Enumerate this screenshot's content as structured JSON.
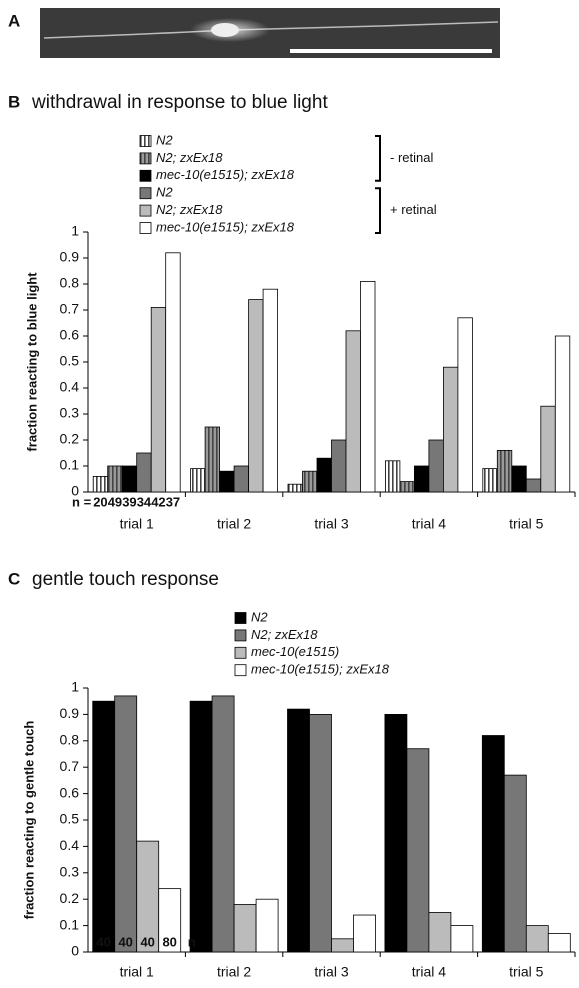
{
  "panel_a": {
    "label": "A"
  },
  "chart_data": [
    {
      "type": "bar",
      "panel": "B",
      "title": "withdrawal in response to blue light",
      "ylabel": "fraction reacting to blue light",
      "categories": [
        "trial 1",
        "trial 2",
        "trial 3",
        "trial 4",
        "trial 5"
      ],
      "series": [
        {
          "name": "N2",
          "color": "#ffffff",
          "hatch": true,
          "values": [
            0.06,
            0.09,
            0.03,
            0.12,
            0.09
          ]
        },
        {
          "name": "N2; zxEx18",
          "color": "#9a9a9a",
          "hatch": true,
          "values": [
            0.1,
            0.25,
            0.08,
            0.04,
            0.16
          ]
        },
        {
          "name": "mec-10(e1515); zxEx18",
          "color": "#000000",
          "hatch": false,
          "values": [
            0.1,
            0.08,
            0.13,
            0.1,
            0.1
          ]
        },
        {
          "name": "N2",
          "color": "#777777",
          "hatch": false,
          "values": [
            0.15,
            0.1,
            0.2,
            0.2,
            0.05
          ]
        },
        {
          "name": "N2; zxEx18",
          "color": "#bbbbbb",
          "hatch": false,
          "values": [
            0.71,
            0.74,
            0.62,
            0.48,
            0.33
          ]
        },
        {
          "name": "mec-10(e1515); zxEx18",
          "color": "#ffffff",
          "hatch": false,
          "values": [
            0.92,
            0.78,
            0.81,
            0.67,
            0.6
          ]
        }
      ],
      "legend_groups": [
        "- retinal",
        "+ retinal"
      ],
      "n_label": "n =",
      "n_counts": [
        20,
        49,
        39,
        34,
        42,
        37
      ],
      "ylim": [
        0,
        1
      ],
      "yticks": [
        0,
        0.1,
        0.2,
        0.3,
        0.4,
        0.5,
        0.6,
        0.7,
        0.8,
        0.9,
        1
      ]
    },
    {
      "type": "bar",
      "panel": "C",
      "title": "gentle touch response",
      "ylabel": "fraction reacting to gentle touch",
      "categories": [
        "trial 1",
        "trial 2",
        "trial 3",
        "trial 4",
        "trial 5"
      ],
      "series": [
        {
          "name": "N2",
          "color": "#000000",
          "hatch": false,
          "values": [
            0.95,
            0.95,
            0.92,
            0.9,
            0.82
          ]
        },
        {
          "name": "N2; zxEx18",
          "color": "#777777",
          "hatch": false,
          "values": [
            0.97,
            0.97,
            0.9,
            0.77,
            0.67
          ]
        },
        {
          "name": "mec-10(e1515)",
          "color": "#bbbbbb",
          "hatch": false,
          "values": [
            0.42,
            0.18,
            0.05,
            0.15,
            0.1
          ]
        },
        {
          "name": "mec-10(e1515); zxEx18",
          "color": "#ffffff",
          "hatch": false,
          "values": [
            0.24,
            0.2,
            0.14,
            0.1,
            0.07
          ]
        }
      ],
      "n_label": "n",
      "n_counts": [
        40,
        40,
        40,
        80
      ],
      "ylim": [
        0,
        1
      ],
      "yticks": [
        0,
        0.1,
        0.2,
        0.3,
        0.4,
        0.5,
        0.6,
        0.7,
        0.8,
        0.9,
        1
      ]
    }
  ]
}
